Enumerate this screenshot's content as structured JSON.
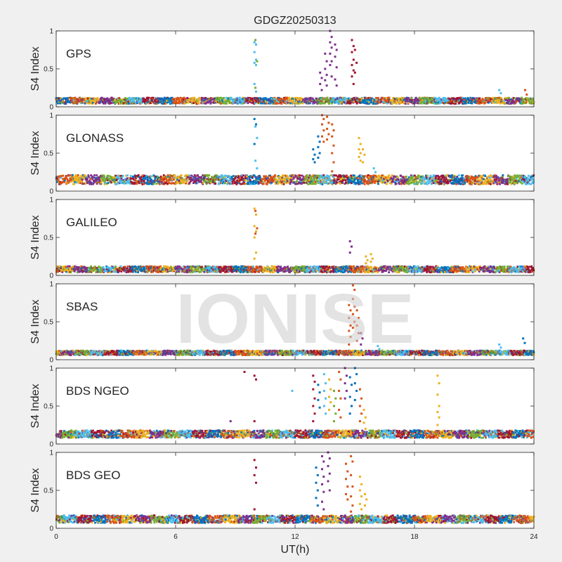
{
  "figure": {
    "title": "GDGZ20250313",
    "xlabel": "UT(h)",
    "watermark": "IONISE",
    "background": "#f0f0f0",
    "axes_color": "#262626",
    "plot_bg": "#ffffff"
  },
  "palette": [
    "#0072BD",
    "#D95319",
    "#EDB120",
    "#7E2F8E",
    "#77AC30",
    "#4DBEEE",
    "#A2142F"
  ],
  "chart_data": [
    {
      "type": "scatter",
      "panel_label": "GPS",
      "ylabel": "S4 Index",
      "xlim": [
        0,
        24
      ],
      "ylim": [
        0,
        1
      ],
      "xticks": [
        0,
        6,
        12,
        18,
        24
      ],
      "yticks": [
        0,
        0.5,
        1
      ],
      "baseline": {
        "level": 0.08,
        "spread": 0.04
      },
      "x_tick_labels_shown": false,
      "spikes": [
        {
          "x": 10.0,
          "y": [
            0.85,
            0.82,
            0.72,
            0.62,
            0.58,
            0.55,
            0.3,
            0.2
          ],
          "color": "#4DBEEE"
        },
        {
          "x": 10.05,
          "y": [
            0.88,
            0.6,
            0.25
          ],
          "color": "#77AC30"
        },
        {
          "x": 13.3,
          "y": [
            0.45,
            0.38,
            0.3,
            0.22
          ],
          "color": "#7E2F8E"
        },
        {
          "x": 13.55,
          "y": [
            0.7,
            0.6,
            0.5,
            0.42,
            0.35,
            0.28
          ],
          "color": "#7E2F8E"
        },
        {
          "x": 13.8,
          "y": [
            1.0,
            0.92,
            0.85,
            0.78,
            0.7,
            0.6,
            0.55,
            0.4
          ],
          "color": "#7E2F8E"
        },
        {
          "x": 14.05,
          "y": [
            0.82,
            0.75,
            0.66,
            0.52,
            0.36,
            0.28
          ],
          "color": "#7E2F8E"
        },
        {
          "x": 14.9,
          "y": [
            0.88,
            0.8,
            0.72,
            0.62,
            0.55,
            0.48,
            0.4,
            0.3
          ],
          "color": "#A2142F"
        },
        {
          "x": 15.05,
          "y": [
            0.75,
            0.58,
            0.45
          ],
          "color": "#A2142F"
        },
        {
          "x": 22.3,
          "y": [
            0.22,
            0.18
          ],
          "color": "#4DBEEE"
        },
        {
          "x": 23.6,
          "y": [
            0.22,
            0.16
          ],
          "color": "#D95319"
        }
      ]
    },
    {
      "type": "scatter",
      "panel_label": "GLONASS",
      "ylabel": "S4 Index",
      "xlim": [
        0,
        24
      ],
      "ylim": [
        0,
        1
      ],
      "xticks": [
        0,
        6,
        12,
        18,
        24
      ],
      "yticks": [
        0,
        0.5,
        1
      ],
      "baseline": {
        "level": 0.15,
        "spread": 0.06
      },
      "x_tick_labels_shown": false,
      "spikes": [
        {
          "x": 10.0,
          "y": [
            0.95,
            0.88,
            0.62
          ],
          "color": "#0072BD"
        },
        {
          "x": 10.05,
          "y": [
            0.85,
            0.7,
            0.4,
            0.3
          ],
          "color": "#4DBEEE"
        },
        {
          "x": 12.95,
          "y": [
            0.55,
            0.48,
            0.42,
            0.38
          ],
          "color": "#0072BD"
        },
        {
          "x": 13.2,
          "y": [
            0.72,
            0.65,
            0.58,
            0.5,
            0.44
          ],
          "color": "#0072BD"
        },
        {
          "x": 13.4,
          "y": [
            1.0,
            0.95,
            0.88,
            0.8,
            0.72,
            0.65
          ],
          "color": "#D95319"
        },
        {
          "x": 13.65,
          "y": [
            0.98,
            0.9,
            0.82,
            0.75,
            0.68
          ],
          "color": "#D95319"
        },
        {
          "x": 13.9,
          "y": [
            0.88,
            0.8,
            0.72,
            0.6,
            0.5,
            0.38,
            0.26
          ],
          "color": "#D95319"
        },
        {
          "x": 15.25,
          "y": [
            0.7,
            0.62,
            0.55,
            0.5,
            0.45,
            0.4
          ],
          "color": "#EDB120"
        },
        {
          "x": 15.45,
          "y": [
            0.55,
            0.48,
            0.38
          ],
          "color": "#EDB120"
        },
        {
          "x": 16.0,
          "y": [
            0.3,
            0.25
          ],
          "color": "#4DBEEE"
        }
      ]
    },
    {
      "type": "scatter",
      "panel_label": "GALILEO",
      "ylabel": "S4 Index",
      "xlim": [
        0,
        24
      ],
      "ylim": [
        0,
        1
      ],
      "xticks": [
        0,
        6,
        12,
        18,
        24
      ],
      "yticks": [
        0,
        0.5,
        1
      ],
      "baseline": {
        "level": 0.08,
        "spread": 0.04
      },
      "x_tick_labels_shown": false,
      "spikes": [
        {
          "x": 10.0,
          "y": [
            0.88,
            0.8,
            0.65,
            0.58,
            0.5,
            0.3,
            0.22
          ],
          "color": "#EDB120"
        },
        {
          "x": 10.05,
          "y": [
            0.85,
            0.62,
            0.55
          ],
          "color": "#D95319"
        },
        {
          "x": 14.8,
          "y": [
            0.45,
            0.38,
            0.3
          ],
          "color": "#7E2F8E"
        },
        {
          "x": 15.6,
          "y": [
            0.25,
            0.2,
            0.16,
            0.12
          ],
          "color": "#EDB120"
        },
        {
          "x": 15.85,
          "y": [
            0.28,
            0.22,
            0.18
          ],
          "color": "#EDB120"
        }
      ]
    },
    {
      "type": "scatter",
      "panel_label": "SBAS",
      "ylabel": "S4 Index",
      "xlim": [
        0,
        24
      ],
      "ylim": [
        0,
        1
      ],
      "xticks": [
        0,
        6,
        12,
        18,
        24
      ],
      "yticks": [
        0,
        0.5,
        1
      ],
      "baseline": {
        "level": 0.09,
        "spread": 0.03
      },
      "x_tick_labels_shown": false,
      "spikes": [
        {
          "x": 14.75,
          "y": [
            0.72,
            0.65,
            0.55,
            0.45,
            0.38,
            0.3,
            0.2
          ],
          "color": "#D95319"
        },
        {
          "x": 14.95,
          "y": [
            0.98,
            0.92,
            0.8,
            0.7,
            0.6,
            0.5,
            0.42
          ],
          "color": "#D95319"
        },
        {
          "x": 15.15,
          "y": [
            0.65,
            0.55,
            0.45,
            0.35,
            0.25
          ],
          "color": "#D95319"
        },
        {
          "x": 15.35,
          "y": [
            0.35,
            0.28,
            0.2
          ],
          "color": "#7E2F8E"
        },
        {
          "x": 16.2,
          "y": [
            0.18,
            0.14
          ],
          "color": "#4DBEEE"
        },
        {
          "x": 22.3,
          "y": [
            0.2,
            0.16
          ],
          "color": "#4DBEEE"
        },
        {
          "x": 23.5,
          "y": [
            0.28,
            0.22
          ],
          "color": "#0072BD"
        }
      ]
    },
    {
      "type": "scatter",
      "panel_label": "BDS NGEO",
      "ylabel": "S4 Index",
      "xlim": [
        0,
        24
      ],
      "ylim": [
        0,
        1
      ],
      "xticks": [
        0,
        6,
        12,
        18,
        24
      ],
      "yticks": [
        0,
        0.5,
        1
      ],
      "baseline": {
        "level": 0.13,
        "spread": 0.05
      },
      "x_tick_labels_shown": false,
      "spikes": [
        {
          "x": 8.8,
          "y": [
            0.3
          ],
          "color": "#7E2F8E"
        },
        {
          "x": 9.5,
          "y": [
            0.95
          ],
          "color": "#A2142F"
        },
        {
          "x": 10.0,
          "y": [
            0.9,
            0.85,
            0.3
          ],
          "color": "#A2142F"
        },
        {
          "x": 11.9,
          "y": [
            0.7
          ],
          "color": "#4DBEEE"
        },
        {
          "x": 12.95,
          "y": [
            0.9,
            0.82,
            0.72,
            0.6,
            0.5,
            0.4,
            0.3
          ],
          "color": "#A2142F"
        },
        {
          "x": 13.2,
          "y": [
            0.78,
            0.68,
            0.58,
            0.48
          ],
          "color": "#0072BD"
        },
        {
          "x": 13.5,
          "y": [
            0.92,
            0.8,
            0.7,
            0.6,
            0.5,
            0.4
          ],
          "color": "#4DBEEE"
        },
        {
          "x": 13.75,
          "y": [
            0.85,
            0.72,
            0.62,
            0.55,
            0.45
          ],
          "color": "#EDB120"
        },
        {
          "x": 14.0,
          "y": [
            0.7,
            0.6,
            0.5,
            0.4,
            0.3
          ],
          "color": "#77AC30"
        },
        {
          "x": 14.25,
          "y": [
            0.95,
            0.85,
            0.7,
            0.6,
            0.45,
            0.35
          ],
          "color": "#D95319"
        },
        {
          "x": 14.55,
          "y": [
            1.0,
            0.9,
            0.8,
            0.7,
            0.6
          ],
          "color": "#7E2F8E"
        },
        {
          "x": 14.8,
          "y": [
            0.88,
            0.78,
            0.62,
            0.5,
            0.4
          ],
          "color": "#0072BD"
        },
        {
          "x": 15.05,
          "y": [
            1.0,
            0.92,
            0.8,
            0.7,
            0.58
          ],
          "color": "#0072BD"
        },
        {
          "x": 15.3,
          "y": [
            0.72,
            0.6,
            0.5,
            0.4,
            0.3
          ],
          "color": "#D95319"
        },
        {
          "x": 15.5,
          "y": [
            0.45,
            0.35,
            0.28,
            0.2
          ],
          "color": "#EDB120"
        },
        {
          "x": 19.2,
          "y": [
            0.9,
            0.8,
            0.65,
            0.5,
            0.42,
            0.35,
            0.25
          ],
          "color": "#EDB120"
        }
      ]
    },
    {
      "type": "scatter",
      "panel_label": "BDS GEO",
      "ylabel": "S4 Index",
      "xlim": [
        0,
        24
      ],
      "ylim": [
        0,
        1
      ],
      "xticks": [
        0,
        6,
        12,
        18,
        24
      ],
      "yticks": [
        0,
        0.5,
        1
      ],
      "baseline": {
        "level": 0.12,
        "spread": 0.05
      },
      "x_tick_labels_shown": true,
      "spikes": [
        {
          "x": 10.0,
          "y": [
            0.9,
            0.8,
            0.7,
            0.6,
            0.25
          ],
          "color": "#A2142F"
        },
        {
          "x": 13.1,
          "y": [
            0.8,
            0.7,
            0.6,
            0.5,
            0.4,
            0.3
          ],
          "color": "#0072BD"
        },
        {
          "x": 13.4,
          "y": [
            0.95,
            0.88,
            0.78,
            0.68,
            0.58,
            0.48,
            0.35,
            0.25
          ],
          "color": "#7E2F8E"
        },
        {
          "x": 13.7,
          "y": [
            1.0,
            0.92,
            0.82,
            0.72,
            0.62,
            0.5
          ],
          "color": "#7E2F8E"
        },
        {
          "x": 14.6,
          "y": [
            0.85,
            0.75,
            0.65,
            0.55,
            0.45,
            0.38
          ],
          "color": "#D95319"
        },
        {
          "x": 14.85,
          "y": [
            0.95,
            0.88,
            0.7,
            0.55,
            0.42,
            0.3,
            0.22
          ],
          "color": "#D95319"
        },
        {
          "x": 15.3,
          "y": [
            0.68,
            0.58,
            0.5,
            0.42,
            0.32,
            0.25
          ],
          "color": "#EDB120"
        },
        {
          "x": 15.55,
          "y": [
            0.45,
            0.38,
            0.3
          ],
          "color": "#EDB120"
        }
      ]
    }
  ]
}
